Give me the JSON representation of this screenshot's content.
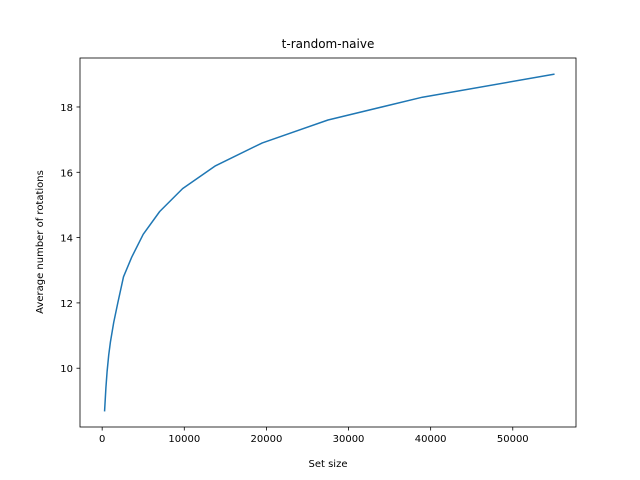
{
  "chart_data": {
    "type": "line",
    "title": "t-random-naive",
    "xlabel": "Set size",
    "ylabel": "Average number of rotations",
    "xlim": [
      -2700,
      57700
    ],
    "ylim": [
      8.2,
      19.5
    ],
    "xticks": [
      0,
      10000,
      20000,
      30000,
      40000,
      50000
    ],
    "yticks": [
      10,
      12,
      14,
      16,
      18
    ],
    "grid": false,
    "line_color": "#1f77b4",
    "series": [
      {
        "x": [
          300,
          450,
          600,
          800,
          1000,
          1400,
          1900,
          2600,
          3600,
          5000,
          7000,
          9800,
          13800,
          19500,
          27500,
          39000,
          55000
        ],
        "y": [
          8.7,
          9.4,
          9.9,
          10.4,
          10.8,
          11.4,
          12.0,
          12.8,
          13.4,
          14.1,
          14.8,
          15.5,
          16.2,
          16.9,
          17.6,
          18.3,
          19.0
        ]
      }
    ]
  }
}
